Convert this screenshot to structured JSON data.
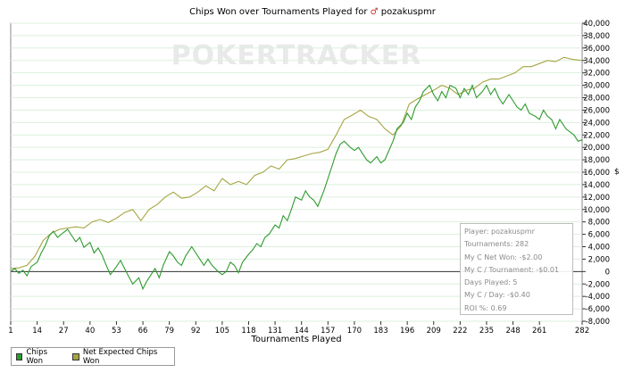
{
  "header": {
    "title_prefix": "Chips Won over Tournaments Played for",
    "player_glyph": "♂",
    "player": "pozakuspmr"
  },
  "watermark": "POKERTRACKER",
  "colors": {
    "chips_won": "#2e9a2e",
    "net_expected": "#a5a543",
    "grid": "#dcefdc",
    "axis": "#333333"
  },
  "stats": {
    "player": "Player: pozakuspmr",
    "tournaments": "Tournaments: 282",
    "net_won": "My C Net Won: -$2.00",
    "per_tournament": "My C / Tournament: -$0.01",
    "days_played": "Days Played: 5",
    "per_day": "My C / Day: -$0.40",
    "roi": "ROI %: 0.69"
  },
  "legend": {
    "chips_won": "Chips Won",
    "net_expected": "Net Expected Chips Won"
  },
  "chart_data": {
    "type": "line",
    "title": "Chips Won over Tournaments Played for pozakuspmr",
    "xlabel": "Tournaments Played",
    "ylabel": "$",
    "x_ticks": [
      1,
      14,
      27,
      40,
      53,
      66,
      79,
      92,
      105,
      118,
      131,
      144,
      157,
      170,
      183,
      196,
      209,
      222,
      235,
      248,
      261,
      282
    ],
    "y_ticks": [
      -8000,
      -6000,
      -4000,
      -2000,
      0,
      2000,
      4000,
      6000,
      8000,
      10000,
      12000,
      14000,
      16000,
      18000,
      20000,
      22000,
      24000,
      26000,
      28000,
      30000,
      32000,
      34000,
      36000,
      38000,
      40000
    ],
    "y_tick_labels": [
      "-8,000",
      "-6,000",
      "-4,000",
      "-2,000",
      "0",
      "2,000",
      "4,000",
      "6,000",
      "8,000",
      "10,000",
      "12,000",
      "14,000",
      "16,000",
      "18,000",
      "20,000",
      "22,000",
      "24,000",
      "26,000",
      "28,000",
      "30,000",
      "32,000",
      "34,000",
      "36,000",
      "38,000",
      "40,000"
    ],
    "xlim": [
      1,
      282
    ],
    "ylim": [
      -8000,
      40000
    ],
    "grid": true,
    "legend_position": "bottom-left",
    "series": [
      {
        "name": "Chips Won",
        "x": [
          1,
          3,
          5,
          7,
          9,
          11,
          14,
          16,
          18,
          20,
          22,
          24,
          27,
          29,
          31,
          33,
          35,
          37,
          40,
          42,
          44,
          46,
          48,
          50,
          53,
          55,
          57,
          59,
          61,
          64,
          66,
          68,
          70,
          72,
          74,
          76,
          79,
          81,
          83,
          85,
          87,
          90,
          92,
          94,
          96,
          98,
          100,
          103,
          105,
          107,
          109,
          111,
          113,
          115,
          118,
          120,
          122,
          124,
          126,
          128,
          131,
          133,
          135,
          137,
          139,
          141,
          144,
          146,
          148,
          150,
          152,
          155,
          157,
          159,
          161,
          163,
          165,
          168,
          170,
          172,
          174,
          176,
          178,
          181,
          183,
          185,
          187,
          189,
          191,
          194,
          196,
          198,
          200,
          202,
          204,
          207,
          209,
          211,
          213,
          215,
          217,
          220,
          222,
          224,
          226,
          228,
          230,
          233,
          235,
          237,
          239,
          241,
          243,
          246,
          248,
          250,
          252,
          254,
          256,
          259,
          261,
          263,
          265,
          267,
          269,
          271,
          274,
          276,
          278,
          280,
          282
        ],
        "y": [
          0,
          500,
          -300,
          200,
          -700,
          800,
          1500,
          3000,
          4200,
          5800,
          6500,
          5500,
          6300,
          6800,
          5800,
          4800,
          5500,
          3900,
          4700,
          3000,
          3800,
          2600,
          1000,
          -500,
          800,
          1800,
          500,
          -800,
          -2000,
          -1000,
          -2800,
          -1500,
          -500,
          500,
          -1000,
          1000,
          3200,
          2500,
          1500,
          1000,
          2500,
          4000,
          3000,
          2000,
          1000,
          2000,
          1000,
          0,
          -500,
          0,
          1500,
          1000,
          -200,
          1500,
          2800,
          3500,
          4500,
          4000,
          5500,
          6000,
          7500,
          7000,
          9000,
          8200,
          10000,
          12000,
          11500,
          13000,
          12000,
          11500,
          10500,
          13000,
          15000,
          17000,
          19000,
          20500,
          21000,
          20000,
          19500,
          20000,
          19000,
          18000,
          17500,
          18500,
          17500,
          18000,
          19500,
          21000,
          23000,
          24000,
          25500,
          24500,
          26500,
          27500,
          29000,
          30000,
          28500,
          27500,
          29000,
          28000,
          30000,
          29500,
          28000,
          29500,
          28500,
          30000,
          28000,
          29000,
          30000,
          28500,
          29500,
          28000,
          27000,
          28500,
          27500,
          26500,
          26000,
          27000,
          25500,
          25000,
          24500,
          26000,
          25000,
          24500,
          23000,
          24500,
          23000,
          22500,
          22000,
          21000,
          21200
        ],
        "line_style": "solid"
      },
      {
        "name": "Net Expected Chips Won",
        "x": [
          1,
          5,
          9,
          13,
          17,
          21,
          25,
          29,
          33,
          37,
          41,
          45,
          49,
          53,
          57,
          61,
          65,
          69,
          73,
          77,
          81,
          85,
          89,
          93,
          97,
          101,
          105,
          109,
          113,
          117,
          121,
          125,
          129,
          133,
          137,
          141,
          145,
          149,
          153,
          157,
          161,
          165,
          169,
          173,
          177,
          181,
          185,
          189,
          193,
          197,
          201,
          205,
          209,
          213,
          217,
          221,
          225,
          229,
          233,
          237,
          241,
          245,
          249,
          253,
          257,
          261,
          265,
          269,
          273,
          277,
          282
        ],
        "y": [
          500,
          600,
          1000,
          2500,
          5000,
          6200,
          6800,
          7000,
          7200,
          7000,
          8000,
          8400,
          7900,
          8600,
          9500,
          10000,
          8200,
          10000,
          10800,
          12000,
          12800,
          11800,
          12000,
          12800,
          13800,
          13000,
          15000,
          14000,
          14500,
          14000,
          15500,
          16000,
          17000,
          16500,
          18000,
          18200,
          18600,
          19000,
          19200,
          19700,
          22000,
          24500,
          25200,
          26000,
          25000,
          24500,
          23000,
          22000,
          23500,
          27000,
          27800,
          28500,
          29200,
          30000,
          29500,
          28500,
          29200,
          29500,
          30500,
          31000,
          31000,
          31500,
          32000,
          33000,
          33000,
          33500,
          34000,
          33800,
          34500,
          34200,
          34000
        ],
        "line_style": "solid"
      }
    ]
  }
}
